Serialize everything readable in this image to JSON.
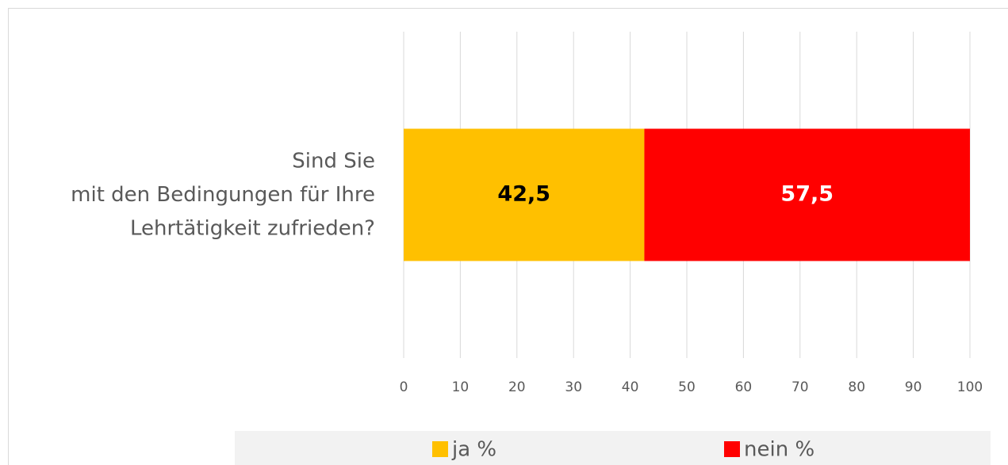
{
  "chart_data": {
    "type": "bar",
    "orientation": "horizontal",
    "stacked": true,
    "categories": [
      "Sind Sie\nmit den Bedingungen für Ihre\nLehrtätigkeit zufrieden?"
    ],
    "series": [
      {
        "name": "ja %",
        "color": "#FFC000",
        "label_color": "#000000",
        "values": [
          42.5
        ],
        "value_labels": [
          "42,5"
        ]
      },
      {
        "name": "nein %",
        "color": "#FF0000",
        "label_color": "#FFFFFF",
        "values": [
          57.5
        ],
        "value_labels": [
          "57,5"
        ]
      }
    ],
    "xlim": [
      0,
      100
    ],
    "xticks": [
      0,
      10,
      20,
      30,
      40,
      50,
      60,
      70,
      80,
      90,
      100
    ],
    "grid": true,
    "legend": "bottom"
  }
}
